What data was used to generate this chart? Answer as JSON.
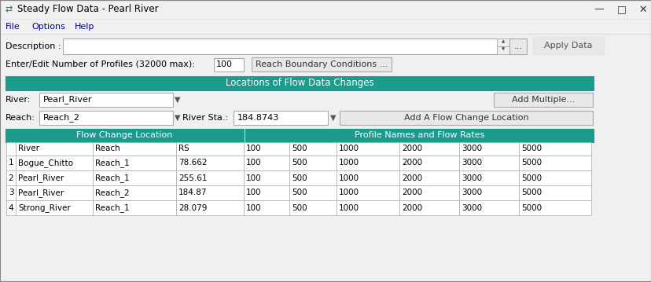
{
  "title": "Steady Flow Data - Pearl River",
  "bg_color": "#f0f0f0",
  "teal_color": "#1A9B8C",
  "white": "#ffffff",
  "light_gray": "#e8e8e8",
  "border_col": "#aaaaaa",
  "dark_border": "#888888",
  "menu_items": [
    "File",
    "Options",
    "Help"
  ],
  "description_label": "Description :",
  "profiles_label": "Enter/Edit Number of Profiles (32000 max):",
  "profiles_value": "100",
  "boundary_btn": "Reach Boundary Conditions ...",
  "flow_locations_header": "Locations of Flow Data Changes",
  "river_label": "River:",
  "river_value": "Pearl_River",
  "add_multiple_btn": "Add Multiple...",
  "reach_label": "Reach:",
  "reach_value": "Reach_2",
  "river_sta_label": "River Sta.:",
  "river_sta_value": "184.8743",
  "add_flow_btn": "Add A Flow Change Location",
  "apply_btn": "Apply Data",
  "flow_change_header": "Flow Change Location",
  "profile_header": "Profile Names and Flow Rates",
  "sub_cols": [
    [
      8,
      20,
      ""
    ],
    [
      20,
      118,
      "River"
    ],
    [
      118,
      224,
      "Reach"
    ],
    [
      224,
      310,
      "RS"
    ],
    [
      310,
      368,
      "100"
    ],
    [
      368,
      428,
      "500"
    ],
    [
      428,
      508,
      "1000"
    ],
    [
      508,
      584,
      "2000"
    ],
    [
      584,
      660,
      "3000"
    ],
    [
      660,
      752,
      "5000"
    ]
  ],
  "rows": [
    [
      "1",
      "Bogue_Chitto",
      "Reach_1",
      "78.662",
      "100",
      "500",
      "1000",
      "2000",
      "3000",
      "5000"
    ],
    [
      "2",
      "Pearl_River",
      "Reach_1",
      "255.61",
      "100",
      "500",
      "1000",
      "2000",
      "3000",
      "5000"
    ],
    [
      "3",
      "Pearl_River",
      "Reach_2",
      "184.87",
      "100",
      "500",
      "1000",
      "2000",
      "3000",
      "5000"
    ],
    [
      "4",
      "Strong_River",
      "Reach_1",
      "28.079",
      "100",
      "500",
      "1000",
      "2000",
      "3000",
      "5000"
    ]
  ]
}
